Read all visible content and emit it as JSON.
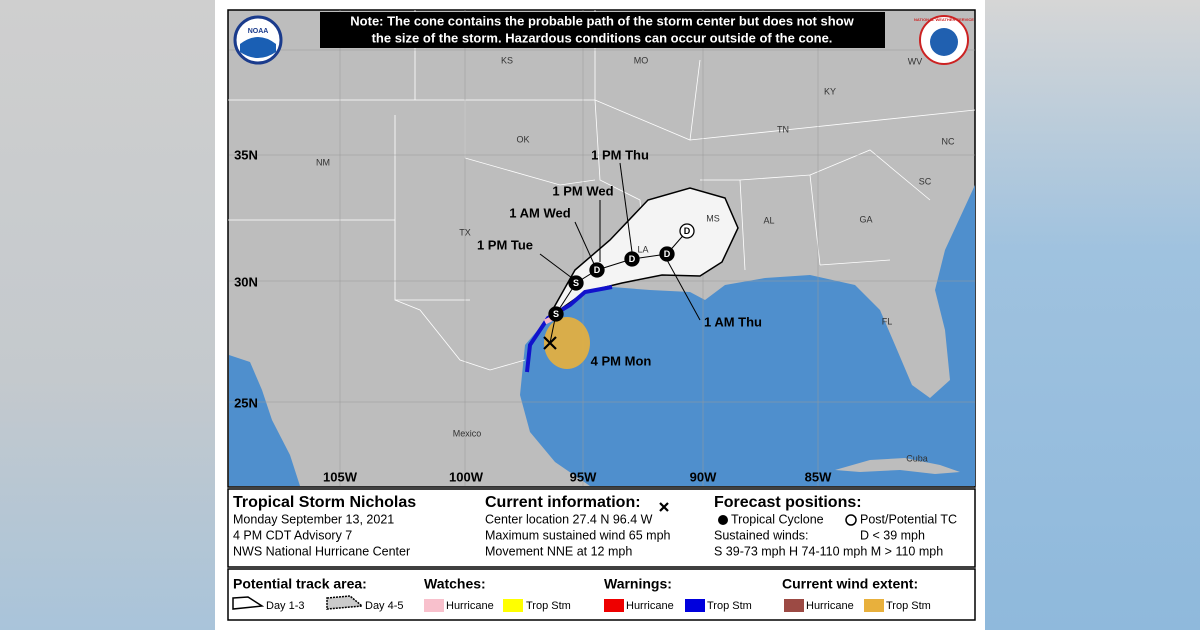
{
  "note": {
    "lines": [
      "Note: The cone contains the probable path of the storm center but does not show",
      "the size of the storm. Hazardous conditions can occur outside of the cone."
    ]
  },
  "logos": {
    "noaa": "NOAA",
    "nws": "NATIONAL WEATHER SERVICE"
  },
  "map": {
    "states": [
      "KS",
      "MO",
      "WV",
      "KY",
      "TN",
      "NC",
      "OK",
      "NM",
      "SC",
      "MS",
      "AL",
      "GA",
      "TX",
      "LA",
      "FL",
      "Mexico",
      "Cuba"
    ],
    "latitudes": [
      "35N",
      "30N",
      "25N"
    ],
    "longitudes": [
      "105W",
      "100W",
      "95W",
      "90W",
      "85W"
    ],
    "forecast_labels": [
      "1 PM Thu",
      "1 PM Wed",
      "1 AM Wed",
      "1 PM Tue",
      "1 AM Thu",
      "4 PM Mon"
    ],
    "markers": [
      "S",
      "S",
      "D",
      "D",
      "D",
      "D"
    ]
  },
  "storm": {
    "title": "Tropical Storm Nicholas",
    "lines": [
      "Monday September 13, 2021",
      "4 PM CDT Advisory 7",
      "NWS National Hurricane Center"
    ]
  },
  "current": {
    "title": "Current information:",
    "lines": [
      "Center location 27.4 N 96.4 W",
      "Maximum sustained wind 65 mph",
      "Movement NNE at 12 mph"
    ]
  },
  "forecast": {
    "title": "Forecast positions:",
    "tropical": "Tropical Cyclone",
    "post": "Post/Potential TC",
    "winds": "Sustained winds:",
    "d": "D < 39 mph",
    "scale": "S 39-73 mph  H 74-110 mph  M > 110 mph"
  },
  "legend": {
    "track": {
      "title": "Potential track area:",
      "items": [
        "Day 1-3",
        "Day 4-5"
      ]
    },
    "watches": {
      "title": "Watches:",
      "items": [
        "Hurricane",
        "Trop Stm"
      ]
    },
    "warnings": {
      "title": "Warnings:",
      "items": [
        "Hurricane",
        "Trop Stm"
      ]
    },
    "wind": {
      "title": "Current wind extent:",
      "items": [
        "Hurricane",
        "Trop Stm"
      ]
    }
  }
}
